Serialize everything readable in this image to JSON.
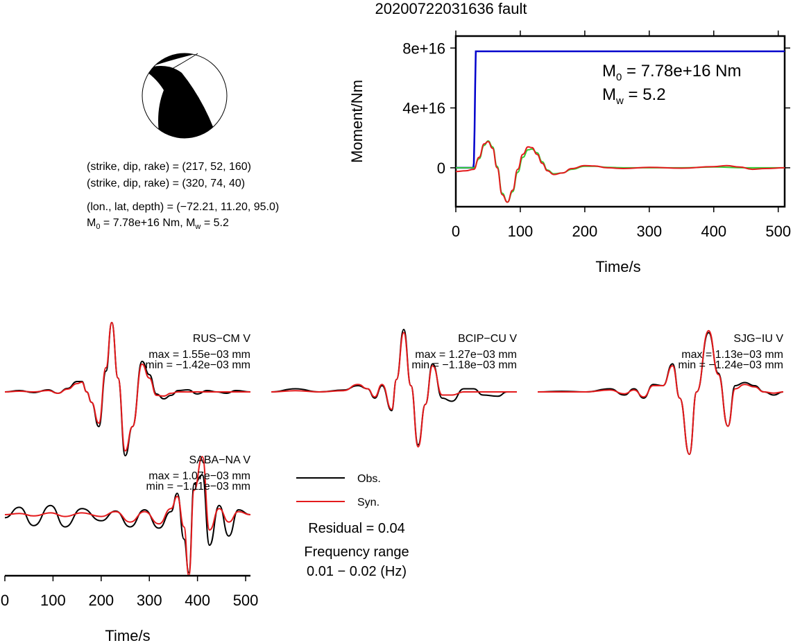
{
  "title": "20200722031636 fault",
  "solution": {
    "nodal_plane_1": "(strike, dip, rake) = (217, 52, 160)",
    "nodal_plane_2": "(strike, dip, rake) = (320, 74, 40)",
    "location": "(lon., lat, depth) = (−72.21, 11.20, 95.0)",
    "m0_prefix": "M",
    "m0_sub": "0",
    "m0_value": " = 7.78e+16 Nm, M",
    "mw_sub": "w",
    "mw_value": " = 5.2"
  },
  "colors": {
    "observed": "#000000",
    "synthetic": "#e41a1c",
    "moment_cumulative": "#0000cc",
    "moment_rate_alt": "#33cc33"
  },
  "chart_data": [
    {
      "type": "line",
      "name": "moment-function",
      "xlabel": "Time/s",
      "ylabel": "Moment/Nm",
      "xlim": [
        0,
        510
      ],
      "ylim": [
        -2.6e+16,
        8.8e+16
      ],
      "xticks": [
        0,
        100,
        200,
        300,
        400,
        500
      ],
      "yticks": [
        0,
        4e+16,
        8e+16
      ],
      "xtick_labels": [
        "0",
        "100",
        "200",
        "300",
        "400",
        "500"
      ],
      "ytick_labels": [
        "0",
        "4e+16",
        "8e+16"
      ],
      "annotation": {
        "m0_prefix": "M",
        "m0_sub": "0",
        "m0_value": " = 7.78e+16 Nm",
        "mw_prefix": "M",
        "mw_sub": "w",
        "mw_value": " = 5.2"
      },
      "series": [
        {
          "color_key": "moment_cumulative",
          "x": [
            0,
            27,
            28,
            29,
            30,
            31,
            32,
            510
          ],
          "y": [
            0,
            0,
            3000000000000000.0,
            2.5e+16,
            5.5e+16,
            7.78e+16,
            7.78e+16,
            7.78e+16
          ]
        },
        {
          "color_key": "moment_rate_alt",
          "x": [
            0,
            28,
            36,
            44,
            50,
            57,
            64,
            72,
            80,
            88,
            96,
            104,
            112,
            118,
            126,
            134,
            142,
            152,
            165,
            180,
            200,
            215,
            235,
            260,
            300,
            350,
            400,
            450,
            510
          ],
          "y": [
            0,
            0,
            6000000000000000.0,
            1.5e+16,
            1.8e+16,
            1.4e+16,
            1000000000000000.0,
            -1.7e+16,
            -2.3e+16,
            -1.6e+16,
            -3000000000000000.0,
            7000000000000000.0,
            1.2e+16,
            1.25e+16,
            1e+16,
            4000000000000000.0,
            -1500000000000000.0,
            -4000000000000000.0,
            -3500000000000000.0,
            -1000000000000000.0,
            1000000000000000.0,
            1000000000000000.0,
            300000000000000.0,
            0,
            0,
            0,
            500000000000000.0,
            0,
            0
          ]
        },
        {
          "color_key": "synthetic",
          "x": [
            0,
            15,
            28,
            36,
            44,
            50,
            57,
            64,
            72,
            80,
            88,
            96,
            104,
            112,
            118,
            126,
            134,
            142,
            152,
            165,
            180,
            200,
            215,
            235,
            260,
            300,
            350,
            400,
            420,
            440,
            460,
            480,
            510
          ],
          "y": [
            -2500000000000000.0,
            -2000000000000000.0,
            -1000000000000000.0,
            7000000000000000.0,
            1.6e+16,
            1.75e+16,
            1.3e+16,
            0.0,
            -1.8e+16,
            -2.3e+16,
            -1.5e+16,
            -1000000000000000.0,
            9000000000000000.0,
            1.4e+16,
            1.35e+16,
            9000000000000000.0,
            3000000000000000.0,
            -2000000000000000.0,
            -4500000000000000.0,
            -3500000000000000.0,
            -500000000000000.0,
            1500000000000000.0,
            1200000000000000.0,
            0.0,
            -500000000000000.0,
            300000000000000.0,
            -300000000000000.0,
            800000000000000.0,
            1500000000000000.0,
            500000000000000.0,
            -1000000000000000.0,
            -500000000000000.0,
            0
          ]
        }
      ]
    },
    {
      "type": "line",
      "name": "waveform-RUS-CM",
      "station": "RUS−CM V",
      "max_label": "max = 1.55e−03 mm",
      "min_label": "min = −1.42e−03 mm",
      "xlim": [
        0,
        510
      ],
      "ylim": [
        -1.0,
        1.0
      ],
      "series": [
        {
          "color_key": "observed",
          "x": [
            0,
            30,
            60,
            90,
            110,
            130,
            150,
            160,
            170,
            180,
            195,
            210,
            222,
            235,
            250,
            265,
            285,
            300,
            315,
            330,
            345,
            360,
            380,
            400,
            420,
            440,
            460,
            480,
            510
          ],
          "y": [
            0,
            0.02,
            -0.01,
            0.03,
            -0.02,
            0.05,
            0.15,
            0.15,
            0.0,
            -0.15,
            -0.5,
            0.3,
            1.0,
            0.2,
            -0.92,
            -0.5,
            0.44,
            0.25,
            -0.03,
            -0.1,
            -0.05,
            0.02,
            0.03,
            -0.03,
            0.02,
            0.0,
            -0.02,
            0.02,
            0
          ]
        },
        {
          "color_key": "synthetic",
          "x": [
            0,
            30,
            60,
            90,
            110,
            130,
            150,
            160,
            170,
            180,
            195,
            210,
            222,
            235,
            250,
            265,
            285,
            300,
            315,
            330,
            345,
            360,
            380,
            400,
            420,
            440,
            460,
            480,
            510
          ],
          "y": [
            0,
            0.01,
            0.0,
            0.02,
            -0.02,
            0.04,
            0.12,
            0.14,
            0.0,
            -0.15,
            -0.45,
            0.35,
            1.0,
            0.2,
            -0.85,
            -0.5,
            0.4,
            0.2,
            -0.05,
            -0.06,
            -0.02,
            0.0,
            0.0,
            0.0,
            0.0,
            0.0,
            0.0,
            0.0,
            0
          ]
        }
      ]
    },
    {
      "type": "line",
      "name": "waveform-BCIP-CU",
      "station": "BCIP−CU V",
      "max_label": "max = 1.27e−03 mm",
      "min_label": "min = −1.18e−03 mm",
      "xlim": [
        0,
        510
      ],
      "ylim": [
        -1.0,
        1.0
      ],
      "series": [
        {
          "color_key": "observed",
          "x": [
            0,
            50,
            100,
            150,
            180,
            200,
            215,
            230,
            250,
            260,
            275,
            290,
            305,
            320,
            335,
            355,
            375,
            400,
            420,
            440,
            470,
            490,
            510
          ],
          "y": [
            0,
            0.05,
            0.0,
            0.03,
            0.1,
            0.05,
            -0.1,
            0.1,
            -0.3,
            0.2,
            1.0,
            0.1,
            -0.85,
            -0.2,
            0.45,
            -0.1,
            -0.15,
            0.05,
            0.05,
            -0.05,
            -0.07,
            0.0,
            0
          ]
        },
        {
          "color_key": "synthetic",
          "x": [
            0,
            50,
            100,
            150,
            180,
            200,
            215,
            230,
            250,
            260,
            275,
            290,
            305,
            320,
            335,
            355,
            375,
            400,
            420,
            440,
            470,
            490,
            510
          ],
          "y": [
            0,
            0.02,
            0.0,
            0.02,
            0.12,
            0.05,
            -0.08,
            0.12,
            -0.28,
            0.2,
            0.95,
            0.1,
            -0.88,
            -0.2,
            0.42,
            -0.05,
            -0.05,
            0.0,
            0.0,
            0.0,
            0.0,
            0.0,
            0
          ]
        }
      ]
    },
    {
      "type": "line",
      "name": "waveform-SJG-IU",
      "station": "SJG−IU V",
      "max_label": "max = 1.13e−03 mm",
      "min_label": "min = −1.24e−03 mm",
      "xlim": [
        0,
        510
      ],
      "ylim": [
        -1.0,
        1.0
      ],
      "series": [
        {
          "color_key": "observed",
          "x": [
            0,
            50,
            100,
            150,
            180,
            200,
            220,
            240,
            260,
            280,
            295,
            315,
            330,
            355,
            375,
            395,
            410,
            430,
            450,
            470,
            490,
            510
          ],
          "y": [
            0,
            0.01,
            0.0,
            0.05,
            -0.05,
            0.05,
            -0.1,
            0.12,
            0.1,
            0.45,
            -0.1,
            -1.0,
            0.0,
            0.95,
            0.3,
            -0.55,
            0.1,
            0.15,
            0.1,
            0.0,
            -0.05,
            0
          ]
        },
        {
          "color_key": "synthetic",
          "x": [
            0,
            50,
            100,
            150,
            180,
            200,
            220,
            240,
            260,
            280,
            295,
            315,
            330,
            355,
            375,
            395,
            410,
            430,
            450,
            470,
            490,
            510
          ],
          "y": [
            0,
            0.0,
            0.0,
            0.03,
            -0.03,
            0.03,
            -0.08,
            0.1,
            0.1,
            0.42,
            -0.1,
            -1.0,
            0.0,
            0.98,
            0.28,
            -0.55,
            0.05,
            0.12,
            0.08,
            0.0,
            -0.02,
            0
          ]
        }
      ]
    },
    {
      "type": "line",
      "name": "waveform-SABA-NA",
      "station": "SABA−NA V",
      "max_label": "max = 1.07e−03 mm",
      "min_label": "min = −1.11e−03 mm",
      "xlabel": "Time/s",
      "xlim": [
        0,
        510
      ],
      "ylim": [
        -1.0,
        1.0
      ],
      "xticks": [
        0,
        100,
        200,
        300,
        400,
        500
      ],
      "xtick_labels": [
        "0",
        "100",
        "200",
        "300",
        "400",
        "500"
      ],
      "series": [
        {
          "color_key": "observed",
          "x": [
            0,
            30,
            60,
            95,
            125,
            160,
            200,
            230,
            260,
            290,
            320,
            345,
            358,
            372,
            382,
            393,
            410,
            425,
            445,
            465,
            485,
            510
          ],
          "y": [
            -0.05,
            0.12,
            -0.18,
            0.15,
            -0.2,
            0.1,
            -0.1,
            0.06,
            -0.2,
            0.08,
            -0.22,
            0.05,
            0.35,
            -0.4,
            -0.95,
            0.5,
            0.65,
            -0.5,
            0.15,
            -0.35,
            0.08,
            0
          ]
        },
        {
          "color_key": "synthetic",
          "x": [
            0,
            30,
            60,
            95,
            125,
            160,
            200,
            230,
            260,
            290,
            320,
            345,
            358,
            372,
            382,
            393,
            410,
            425,
            445,
            465,
            485,
            510
          ],
          "y": [
            0,
            0.02,
            -0.02,
            0.03,
            -0.03,
            0.03,
            -0.03,
            0.05,
            -0.12,
            0.05,
            -0.15,
            0.1,
            0.3,
            -0.2,
            -1.0,
            0.4,
            0.95,
            -0.25,
            0.1,
            -0.12,
            0.05,
            0
          ]
        }
      ]
    }
  ],
  "legend": {
    "items": [
      {
        "label": "Obs.",
        "color_key": "observed"
      },
      {
        "label": "Syn.",
        "color_key": "synthetic"
      }
    ],
    "residual": "Residual = 0.04",
    "freq_title": "Frequency range",
    "freq_range": "0.01 − 0.02 (Hz)"
  }
}
